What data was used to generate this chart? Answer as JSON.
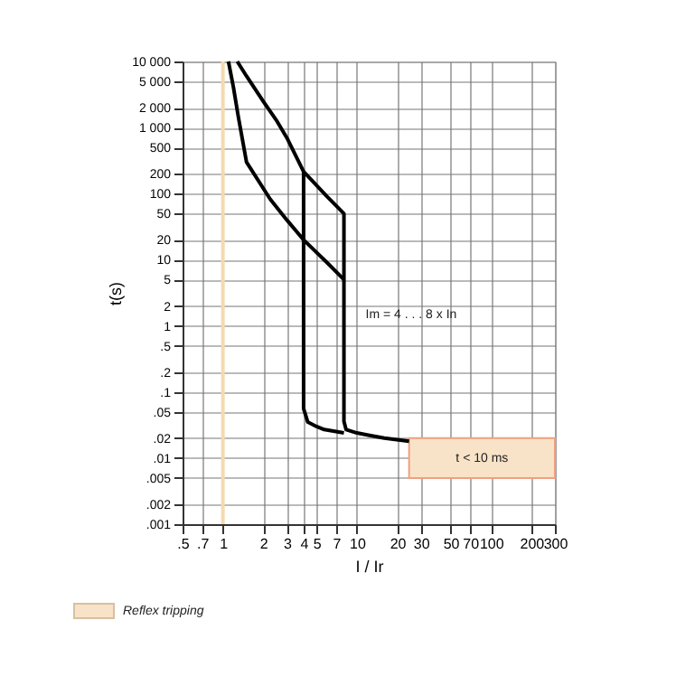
{
  "chart_data": {
    "type": "line",
    "xlabel": "I / Ir",
    "ylabel": "t(s)",
    "log": "xy",
    "xlim": [
      0.5,
      300
    ],
    "ylim": [
      0.001,
      10000
    ],
    "xticks": [
      {
        "value": 0.5,
        "label": ".5"
      },
      {
        "value": 0.7,
        "label": ".7"
      },
      1,
      2,
      3,
      4,
      5,
      7,
      10,
      20,
      30,
      50,
      70,
      100,
      200,
      300
    ],
    "yticks": [
      {
        "value": 0.001,
        "label": ".001"
      },
      {
        "value": 0.002,
        "label": ".002"
      },
      {
        "value": 0.005,
        "label": ".005"
      },
      {
        "value": 0.01,
        "label": ".01"
      },
      {
        "value": 0.02,
        "label": ".02"
      },
      {
        "value": 0.05,
        "label": ".05"
      },
      {
        "value": 0.1,
        "label": ".1"
      },
      {
        "value": 0.2,
        "label": ".2"
      },
      {
        "value": 0.5,
        "label": ".5"
      },
      1,
      2,
      5,
      10,
      20,
      50,
      100,
      200,
      500,
      {
        "value": 1000,
        "label": "1 000"
      },
      {
        "value": 2000,
        "label": "2 000"
      },
      {
        "value": 5000,
        "label": "5 000"
      },
      {
        "value": 10000,
        "label": "10 000"
      }
    ],
    "grid": true,
    "line_style": "solid",
    "marker": "none",
    "legend": "bottom left",
    "series": [
      {
        "color": "#000000",
        "x": [
          1.28,
          1.5,
          2,
          2.5,
          3,
          4,
          6,
          8,
          8,
          8.3,
          10,
          12.4,
          16,
          24.5
        ],
        "values": [
          10000,
          6000,
          2500,
          1300,
          700,
          215,
          90,
          50,
          0.036,
          0.027,
          0.024,
          0.022,
          0.02,
          0.018
        ]
      },
      {
        "color": "#000000",
        "x": [
          1.1,
          1.2,
          1.3,
          1.5,
          2.25,
          3,
          4,
          6,
          8
        ],
        "values": [
          10000,
          4000,
          1500,
          300,
          83,
          40,
          20,
          9,
          5
        ]
      },
      {
        "color": "#000000",
        "x": [
          4,
          4,
          4.3,
          5,
          5.7,
          8
        ],
        "values": [
          215,
          0.056,
          0.035,
          0.03,
          0.027,
          0.024
        ]
      }
    ],
    "bands": [
      {
        "axis": "y",
        "from": 0.005,
        "to": 0.02,
        "label": "Reflex tripping",
        "color": "#f8e3c8"
      }
    ],
    "ref_lines": [
      {
        "axis": "x",
        "value": 1,
        "color": "#f5d9b0"
      }
    ],
    "annotations": [
      {
        "text": "Im = 4 . . . 8 x In",
        "x": 8,
        "y": 1.5
      },
      "t < 10 ms"
    ]
  }
}
